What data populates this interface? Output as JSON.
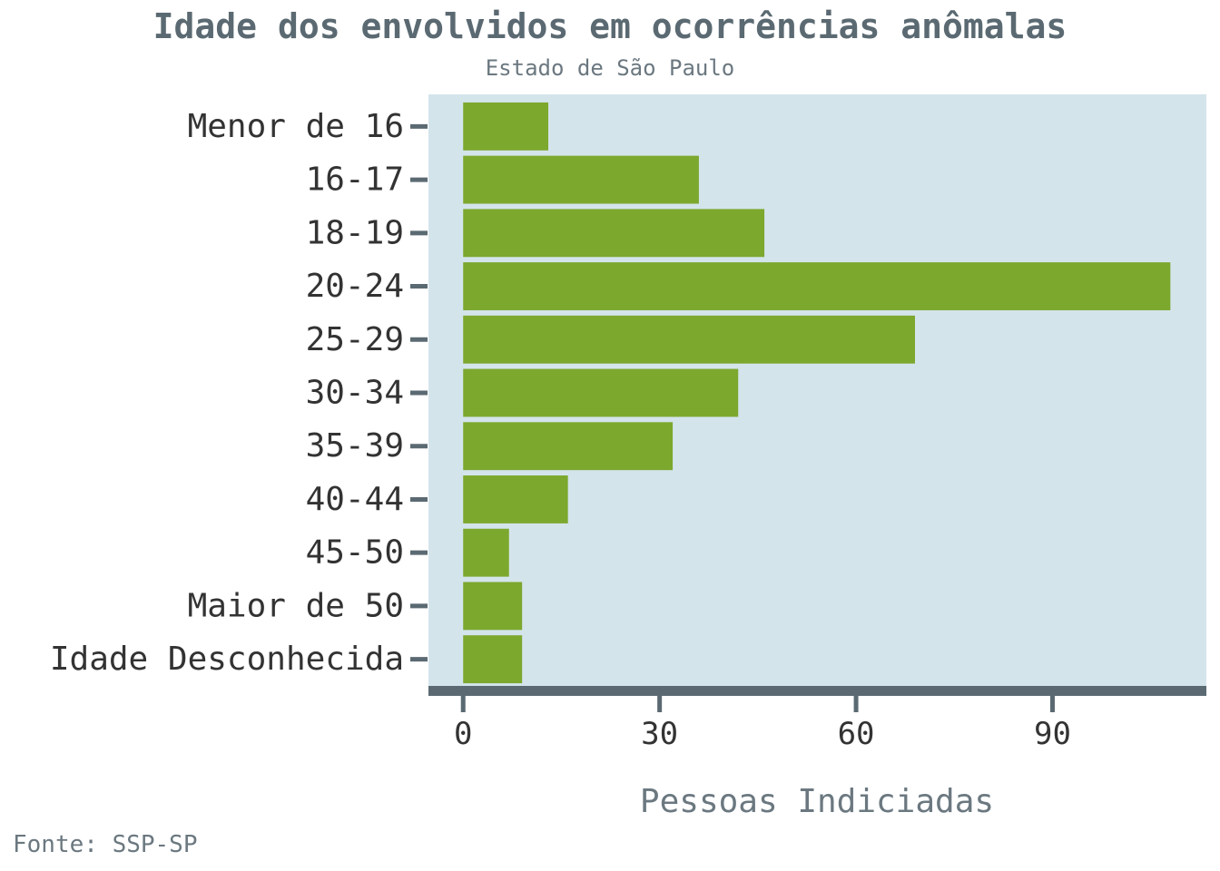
{
  "chart_data": {
    "type": "bar",
    "orientation": "horizontal",
    "title": "Idade dos envolvidos em ocorrências anômalas",
    "subtitle": "Estado de São Paulo",
    "xlabel": "Pessoas Indiciadas",
    "ylabel": "",
    "caption": "Fonte: SSP-SP",
    "categories": [
      "Menor de 16",
      "16-17",
      "18-19",
      "20-24",
      "25-29",
      "30-34",
      "35-39",
      "40-44",
      "45-50",
      "Maior de 50",
      "Idade Desconhecida"
    ],
    "values": [
      13,
      36,
      46,
      108,
      69,
      42,
      32,
      16,
      7,
      9,
      9
    ],
    "xlim": [
      -5.3,
      113.5
    ],
    "xticks": [
      0,
      30,
      60,
      90
    ],
    "grid": false,
    "colors": {
      "bar": "#7ca82e",
      "panel": "#d4e4eb",
      "axis": "#5b6a72"
    }
  }
}
